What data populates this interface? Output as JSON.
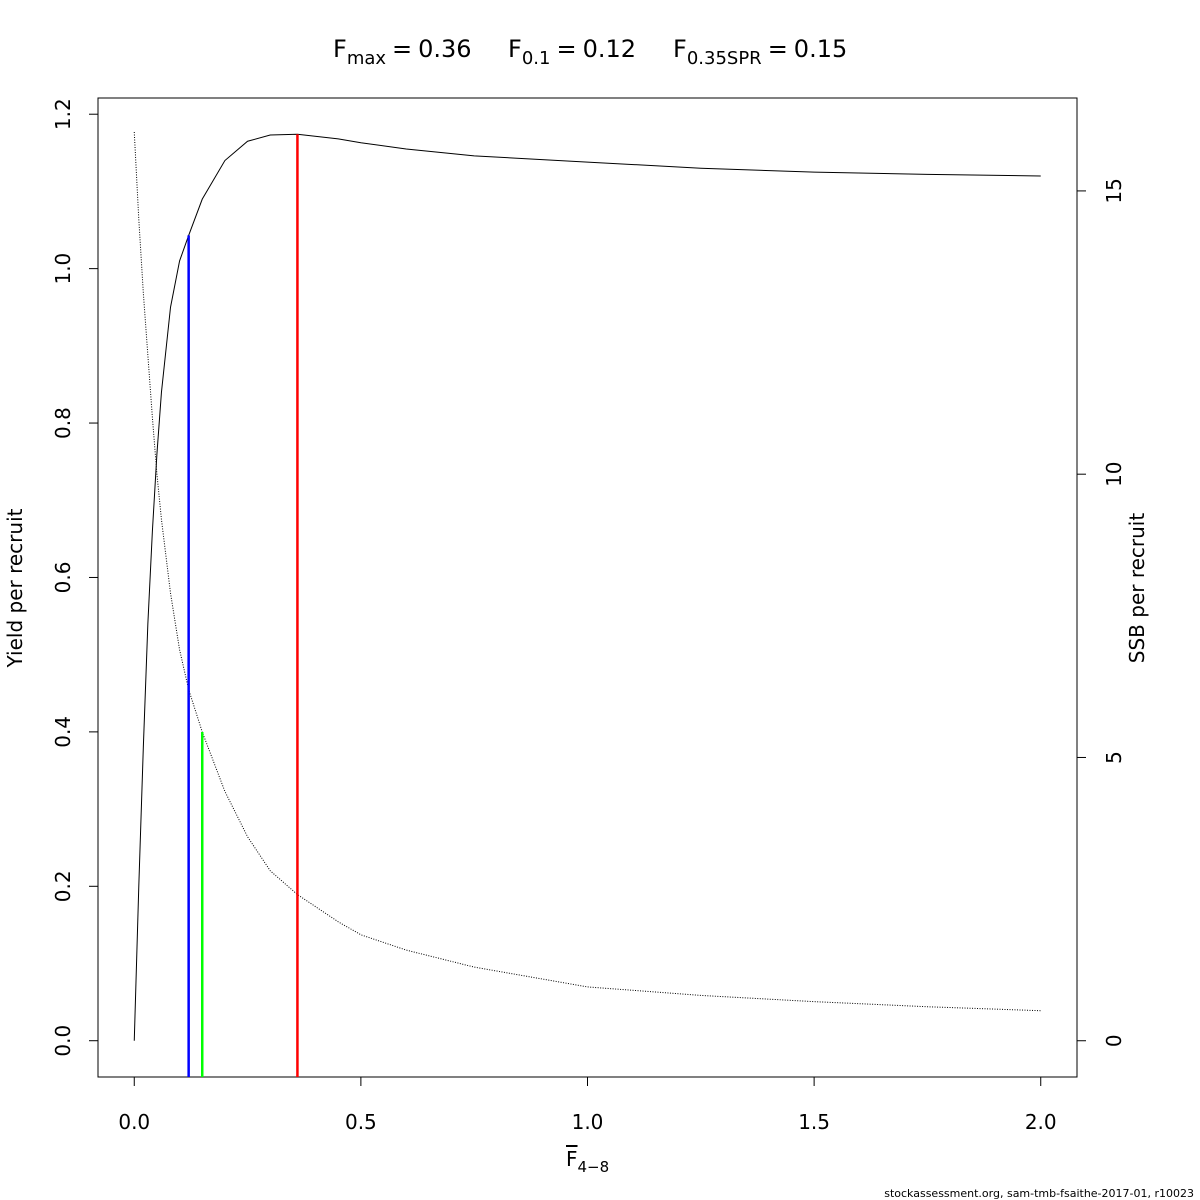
{
  "chart_data": {
    "type": "line",
    "reference_lines": [
      {
        "symbol": "F",
        "subscript": "max",
        "relation": "=",
        "x": 0.36,
        "top": 1.174,
        "axis": "y",
        "color": "#ff0000"
      },
      {
        "symbol": "F",
        "subscript": "0.1",
        "relation": "=",
        "x": 0.12,
        "top": 1.043,
        "axis": "y",
        "color": "#0000ff"
      },
      {
        "symbol": "F",
        "subscript": "0.35SPR",
        "relation": "=",
        "x": 0.15,
        "top": 5.45,
        "axis": "y2",
        "color": "#00ff00"
      }
    ],
    "x_label": {
      "symbol": "F",
      "subscript": "4−8"
    },
    "y_label": "Yield per recruit",
    "y2_label": "SSB per recruit",
    "footnote": "stockassessment.org, sam-tmb-fsaithe-2017-01, r10023",
    "x": [
      0,
      0.01,
      0.02,
      0.03,
      0.04,
      0.05,
      0.06,
      0.08,
      0.1,
      0.12,
      0.15,
      0.2,
      0.25,
      0.3,
      0.36,
      0.45,
      0.5,
      0.6,
      0.75,
      1.0,
      1.25,
      1.5,
      1.75,
      2.0
    ],
    "series": [
      {
        "color": "#000000",
        "dash": false,
        "axis": "y",
        "values": [
          0,
          0.2,
          0.38,
          0.54,
          0.66,
          0.76,
          0.84,
          0.95,
          1.01,
          1.043,
          1.09,
          1.14,
          1.165,
          1.173,
          1.174,
          1.168,
          1.163,
          1.155,
          1.146,
          1.138,
          1.13,
          1.125,
          1.122,
          1.12
        ]
      },
      {
        "color": "#000000",
        "dash": true,
        "axis": "y2",
        "values": [
          16.04,
          14.5,
          13.2,
          12.1,
          11.0,
          10.0,
          9.2,
          7.9,
          6.9,
          6.2,
          5.45,
          4.4,
          3.6,
          3.0,
          2.58,
          2.1,
          1.87,
          1.6,
          1.3,
          0.95,
          0.8,
          0.69,
          0.6,
          0.53
        ]
      }
    ],
    "xlim": [
      -0.08,
      2.08
    ],
    "xticks": [
      {
        "value": 0,
        "label": "0.0"
      },
      {
        "value": 0.5,
        "label": "0.5"
      },
      {
        "value": 1,
        "label": "1.0"
      },
      {
        "value": 1.5,
        "label": "1.5"
      },
      {
        "value": 2,
        "label": "2.0"
      }
    ],
    "ylim": [
      -0.047,
      1.221
    ],
    "yticks": [
      {
        "value": 0,
        "label": "0.0"
      },
      {
        "value": 0.2,
        "label": "0.2"
      },
      {
        "value": 0.4,
        "label": "0.4"
      },
      {
        "value": 0.6,
        "label": "0.6"
      },
      {
        "value": 0.8,
        "label": "0.8"
      },
      {
        "value": 1,
        "label": "1.0"
      },
      {
        "value": 1.2,
        "label": "1.2"
      }
    ],
    "y2lim": [
      -0.64,
      16.64
    ],
    "y2ticks": [
      0,
      5,
      10,
      15
    ]
  }
}
